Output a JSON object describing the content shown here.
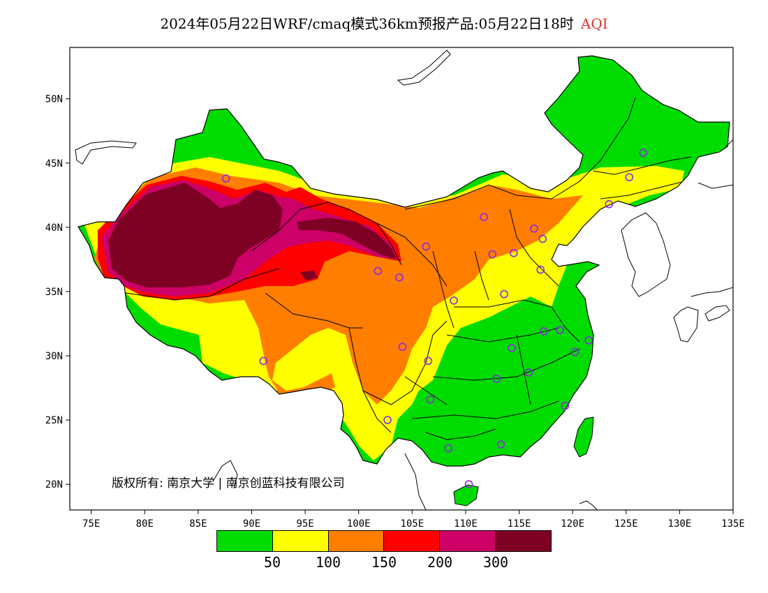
{
  "title": {
    "main": "2024年05月22日WRF/cmaq模式36km预报产品:05月22日18时",
    "variable": "AQI"
  },
  "axes": {
    "x_ticks": [
      "75E",
      "80E",
      "85E",
      "90E",
      "95E",
      "100E",
      "105E",
      "110E",
      "115E",
      "120E",
      "125E",
      "130E",
      "135E"
    ],
    "x_values": [
      75,
      80,
      85,
      90,
      95,
      100,
      105,
      110,
      115,
      120,
      125,
      130,
      135
    ],
    "y_ticks": [
      "20N",
      "25N",
      "30N",
      "35N",
      "40N",
      "45N",
      "50N"
    ],
    "y_values": [
      20,
      25,
      30,
      35,
      40,
      45,
      50
    ],
    "lon_range": [
      73,
      135
    ],
    "lat_range": [
      18,
      54
    ]
  },
  "copyright": "版权所有: 南京大学 | 南京创蓝科技有限公司",
  "colorbar": {
    "colors": [
      "#00dc00",
      "#ffff00",
      "#ff7e00",
      "#ff0000",
      "#cc0066",
      "#7e0023"
    ],
    "labels": [
      "50",
      "100",
      "150",
      "200",
      "300"
    ]
  },
  "aqi_levels": {
    "good": "#00dc00",
    "moderate": "#ffff00",
    "unhealthy_sensitive": "#ff7e00",
    "unhealthy": "#ff0000",
    "very_unhealthy": "#cc0066",
    "hazardous": "#7e0023"
  },
  "station_marker_color": "#8a2be2",
  "stations": [
    [
      87.6,
      43.8
    ],
    [
      126.6,
      45.8
    ],
    [
      125.3,
      43.9
    ],
    [
      123.4,
      41.8
    ],
    [
      111.7,
      40.8
    ],
    [
      116.4,
      39.9
    ],
    [
      117.2,
      39.1
    ],
    [
      106.3,
      38.5
    ],
    [
      112.5,
      37.9
    ],
    [
      114.5,
      38.0
    ],
    [
      117.0,
      36.7
    ],
    [
      101.8,
      36.6
    ],
    [
      103.8,
      36.1
    ],
    [
      113.6,
      34.8
    ],
    [
      108.9,
      34.3
    ],
    [
      118.8,
      32.0
    ],
    [
      117.3,
      31.9
    ],
    [
      121.5,
      31.2
    ],
    [
      120.2,
      30.3
    ],
    [
      104.1,
      30.7
    ],
    [
      106.5,
      29.6
    ],
    [
      114.3,
      30.6
    ],
    [
      115.9,
      28.7
    ],
    [
      112.9,
      28.2
    ],
    [
      106.7,
      26.6
    ],
    [
      102.7,
      25.0
    ],
    [
      119.3,
      26.1
    ],
    [
      113.3,
      23.1
    ],
    [
      108.4,
      22.8
    ],
    [
      110.3,
      20.0
    ],
    [
      91.1,
      29.6
    ]
  ]
}
